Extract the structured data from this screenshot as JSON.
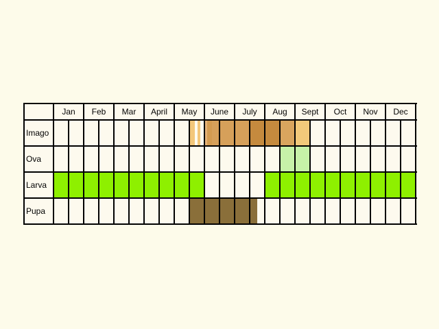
{
  "months": [
    "Jan",
    "Feb",
    "Mar",
    "April",
    "May",
    "June",
    "July",
    "Aug",
    "Sept",
    "Oct",
    "Nov",
    "Dec"
  ],
  "stages": [
    {
      "label": "Imago",
      "bars": [
        {
          "from": 9.0,
          "to": 9.35,
          "color": "#f3c77a"
        },
        {
          "from": 9.35,
          "to": 9.55,
          "color": "#fdfaee"
        },
        {
          "from": 9.55,
          "to": 9.75,
          "color": "#f3c77a"
        },
        {
          "from": 9.75,
          "to": 10.0,
          "color": "#fdfaee"
        },
        {
          "from": 10.0,
          "to": 10.2,
          "color": "#e4b278"
        },
        {
          "from": 10.2,
          "to": 10.5,
          "color": "#d39b50"
        },
        {
          "from": 10.5,
          "to": 13.0,
          "color": "#d6a05a"
        },
        {
          "from": 13.0,
          "to": 15.0,
          "color": "#c58a3e"
        },
        {
          "from": 15.0,
          "to": 16.0,
          "color": "#d9a55e"
        },
        {
          "from": 16.0,
          "to": 17.0,
          "color": "#f2c97a"
        }
      ]
    },
    {
      "label": "Ova",
      "bars": [
        {
          "from": 15.0,
          "to": 17.0,
          "color": "#c7f2a8"
        }
      ]
    },
    {
      "label": "Larva",
      "bars": [
        {
          "from": 0.0,
          "to": 10.0,
          "color": "#8ef000"
        },
        {
          "from": 14.0,
          "to": 24.0,
          "color": "#8ef000"
        }
      ]
    },
    {
      "label": "Pupa",
      "bars": [
        {
          "from": 9.0,
          "to": 13.5,
          "color": "#8a6f3a"
        }
      ]
    }
  ],
  "colors": {
    "background": "#fdfbea",
    "cell": "#fdfaee",
    "grid": "#000000"
  }
}
